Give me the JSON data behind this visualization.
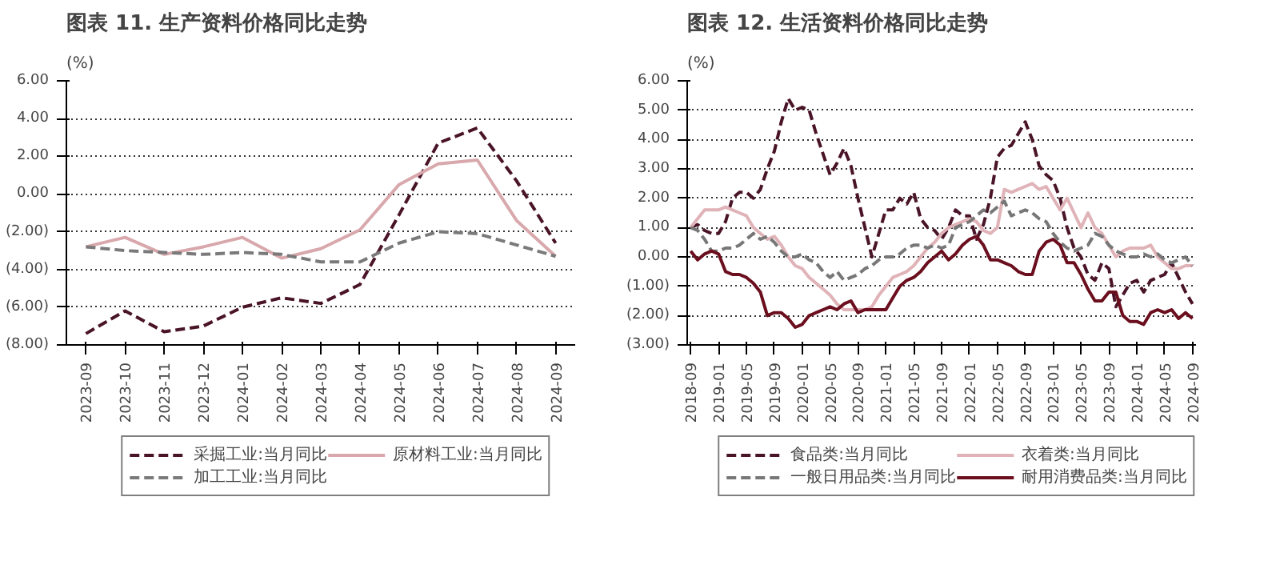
{
  "chart_data": [
    {
      "type": "line",
      "title": "图表 11. 生产资料价格同比走势",
      "ylabel": "(%)",
      "categories": [
        "2023-09",
        "2023-10",
        "2023-11",
        "2023-12",
        "2024-01",
        "2024-02",
        "2024-03",
        "2024-04",
        "2024-05",
        "2024-06",
        "2024-07",
        "2024-08",
        "2024-09"
      ],
      "series": [
        {
          "name": "采掘工业:当月同比",
          "color": "#4a1428",
          "line_style": "dashed",
          "values": [
            -7.4,
            -6.2,
            -7.3,
            -7.0,
            -6.0,
            -5.5,
            -5.8,
            -4.8,
            -1.1,
            2.7,
            3.5,
            0.7,
            -2.6
          ]
        },
        {
          "name": "原材料工业:当月同比",
          "color": "#d8a8ac",
          "line_style": "solid",
          "values": [
            -2.8,
            -2.3,
            -3.2,
            -2.8,
            -2.3,
            -3.4,
            -2.9,
            -1.9,
            0.5,
            1.6,
            1.8,
            -1.4,
            -3.3
          ]
        },
        {
          "name": "加工工业:当月同比",
          "color": "#7a7a7a",
          "line_style": "dashed",
          "values": [
            -2.8,
            -3.0,
            -3.1,
            -3.2,
            -3.1,
            -3.2,
            -3.6,
            -3.6,
            -2.6,
            -2.0,
            -2.1,
            -2.7,
            -3.3
          ]
        }
      ],
      "ylim": [
        -8,
        6
      ],
      "yticks": [
        {
          "value": -8,
          "label": "(8.00)"
        },
        {
          "value": -6,
          "label": "(6.00)"
        },
        {
          "value": -4,
          "label": "(4.00)"
        },
        {
          "value": -2,
          "label": "(2.00)"
        },
        {
          "value": 0,
          "label": "0.00"
        },
        {
          "value": 2,
          "label": "2.00"
        },
        {
          "value": 4,
          "label": "4.00"
        },
        {
          "value": 6,
          "label": "6.00"
        }
      ],
      "grid": "y",
      "legend": "bottom"
    },
    {
      "type": "line",
      "title": "图表 12. 生活资料价格同比走势",
      "ylabel": "(%)",
      "categories": [
        "2018-09",
        null,
        null,
        null,
        "2019-01",
        null,
        null,
        null,
        "2019-05",
        null,
        null,
        null,
        "2019-09",
        null,
        null,
        null,
        "2020-01",
        null,
        null,
        null,
        "2020-05",
        null,
        null,
        null,
        "2020-09",
        null,
        null,
        null,
        "2021-01",
        null,
        null,
        null,
        "2021-05",
        null,
        null,
        null,
        "2021-09",
        null,
        null,
        null,
        "2022-01",
        null,
        null,
        null,
        "2022-05",
        null,
        null,
        null,
        "2022-09",
        null,
        null,
        null,
        "2023-01",
        null,
        null,
        null,
        "2023-05",
        null,
        null,
        null,
        "2023-09",
        null,
        null,
        null,
        "2024-01",
        null,
        null,
        null,
        "2024-05",
        null,
        null,
        null,
        "2024-09"
      ],
      "series": [
        {
          "name": "食品类:当月同比",
          "color": "#4a1428",
          "line_style": "dashed",
          "values": [
            1.0,
            1.1,
            0.9,
            0.8,
            0.8,
            1.2,
            2.0,
            2.2,
            2.2,
            2.0,
            2.3,
            3.0,
            3.6,
            4.6,
            5.4,
            5.0,
            5.1,
            5.0,
            4.2,
            3.5,
            2.8,
            3.2,
            3.7,
            3.1,
            2.0,
            1.0,
            0.0,
            0.8,
            1.6,
            1.6,
            2.0,
            1.8,
            2.2,
            1.3,
            1.0,
            0.9,
            0.6,
            1.0,
            1.6,
            1.4,
            1.4,
            0.6,
            1.1,
            2.0,
            3.4,
            3.7,
            3.8,
            4.2,
            4.6,
            4.0,
            3.1,
            2.8,
            2.6,
            2.0,
            1.0,
            0.3,
            0.0,
            -0.6,
            -0.8,
            -0.2,
            -0.4,
            -1.7,
            -1.3,
            -0.9,
            -0.8,
            -1.2,
            -0.8,
            -0.7,
            -0.6,
            -0.2,
            -0.7,
            -1.2,
            -1.6
          ]
        },
        {
          "name": "衣着类:当月同比",
          "color": "#e0b3b8",
          "line_style": "solid",
          "values": [
            1.0,
            1.3,
            1.6,
            1.6,
            1.6,
            1.7,
            1.6,
            1.5,
            1.4,
            1.0,
            0.8,
            0.6,
            0.7,
            0.4,
            0.0,
            -0.3,
            -0.4,
            -0.7,
            -0.9,
            -1.1,
            -1.3,
            -1.6,
            -1.8,
            -1.8,
            -1.8,
            -1.8,
            -1.7,
            -1.3,
            -1.0,
            -0.7,
            -0.6,
            -0.5,
            -0.3,
            0.0,
            0.3,
            0.5,
            0.8,
            1.0,
            1.1,
            1.2,
            1.3,
            1.2,
            0.9,
            0.8,
            1.0,
            2.3,
            2.2,
            2.3,
            2.4,
            2.5,
            2.3,
            2.4,
            2.0,
            1.6,
            2.0,
            1.5,
            1.0,
            1.5,
            1.0,
            0.8,
            0.4,
            0.0,
            0.2,
            0.3,
            0.3,
            0.3,
            0.4,
            0.0,
            -0.2,
            -0.4,
            -0.4,
            -0.3,
            -0.3
          ]
        },
        {
          "name": "一般日用品类:当月同比",
          "color": "#777777",
          "line_style": "dashed",
          "values": [
            1.0,
            0.9,
            0.6,
            0.2,
            0.2,
            0.3,
            0.3,
            0.4,
            0.6,
            0.8,
            0.6,
            0.7,
            0.5,
            0.2,
            0.0,
            0.0,
            0.1,
            -0.1,
            -0.2,
            -0.5,
            -0.7,
            -0.5,
            -0.8,
            -0.7,
            -0.6,
            -0.4,
            -0.3,
            -0.1,
            0.0,
            0.0,
            0.1,
            0.3,
            0.4,
            0.4,
            0.3,
            0.4,
            0.3,
            0.4,
            1.0,
            1.1,
            1.2,
            1.4,
            1.6,
            1.5,
            1.7,
            1.9,
            1.4,
            1.5,
            1.6,
            1.5,
            1.3,
            1.2,
            0.8,
            0.5,
            0.3,
            0.2,
            0.3,
            0.4,
            0.8,
            0.7,
            0.4,
            0.2,
            0.1,
            0.0,
            0.0,
            0.1,
            0.0,
            0.1,
            -0.1,
            -0.2,
            -0.1,
            0.0,
            -0.3
          ]
        },
        {
          "name": "耐用消费品类:当月同比",
          "color": "#6b0f1f",
          "line_style": "solid",
          "values": [
            0.2,
            -0.1,
            0.1,
            0.2,
            0.1,
            -0.5,
            -0.6,
            -0.6,
            -0.7,
            -0.9,
            -1.2,
            -2.0,
            -1.9,
            -1.9,
            -2.1,
            -2.4,
            -2.3,
            -2.0,
            -1.9,
            -1.8,
            -1.7,
            -1.8,
            -1.6,
            -1.5,
            -1.9,
            -1.8,
            -1.8,
            -1.8,
            -1.8,
            -1.4,
            -1.0,
            -0.8,
            -0.7,
            -0.5,
            -0.2,
            0.0,
            0.2,
            -0.1,
            0.1,
            0.4,
            0.6,
            0.7,
            0.4,
            -0.1,
            -0.1,
            -0.2,
            -0.3,
            -0.5,
            -0.6,
            -0.6,
            0.2,
            0.5,
            0.6,
            0.4,
            -0.2,
            -0.2,
            -0.6,
            -1.1,
            -1.5,
            -1.5,
            -1.2,
            -1.2,
            -2.0,
            -2.2,
            -2.2,
            -2.3,
            -1.9,
            -1.8,
            -1.9,
            -1.8,
            -2.1,
            -1.9,
            -2.1
          ]
        }
      ],
      "ylim": [
        -3,
        6
      ],
      "yticks": [
        {
          "value": -3,
          "label": "(3.00)"
        },
        {
          "value": -2,
          "label": "(2.00)"
        },
        {
          "value": -1,
          "label": "(1.00)"
        },
        {
          "value": 0,
          "label": "0.00"
        },
        {
          "value": 1,
          "label": "1.00"
        },
        {
          "value": 2,
          "label": "2.00"
        },
        {
          "value": 3,
          "label": "3.00"
        },
        {
          "value": 4,
          "label": "4.00"
        },
        {
          "value": 5,
          "label": "5.00"
        },
        {
          "value": 6,
          "label": "6.00"
        }
      ],
      "grid": "y",
      "legend": "bottom"
    }
  ]
}
